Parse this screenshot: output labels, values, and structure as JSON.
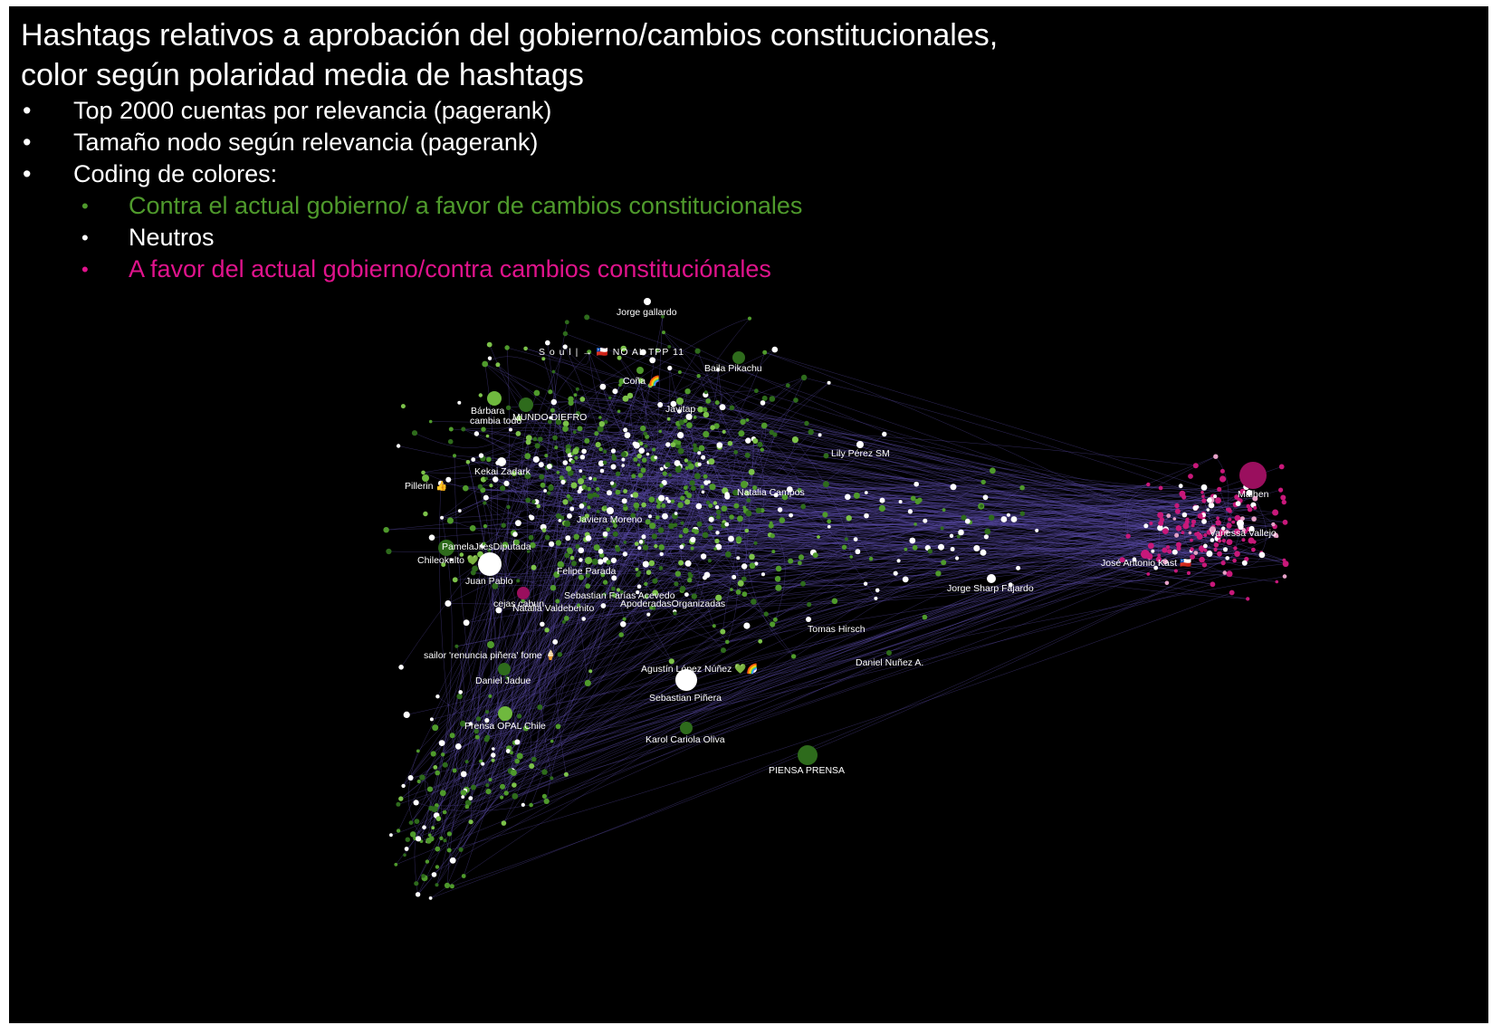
{
  "title": {
    "line1": "Hashtags relativos a aprobación del gobierno/cambios constitucionales,",
    "line2": "color según polaridad media de hashtags"
  },
  "bullets": [
    "Top 2000 cuentas por relevancia (pagerank)",
    "Tamaño nodo según relevancia (pagerank)",
    "Coding de colores:"
  ],
  "legend": [
    {
      "label": "Contra el actual gobierno/ a favor de cambios constitucionales",
      "color": "#4f9a2c"
    },
    {
      "label": "Neutros",
      "color": "#ffffff"
    },
    {
      "label": "A favor del actual gobierno/contra cambios constituciónales",
      "color": "#e0138c"
    }
  ],
  "colors": {
    "background": "#000000",
    "edge": "#5a4aa8",
    "green_node": "#4f9a2c",
    "dark_green_node": "#2e6b1c",
    "light_green_node": "#7cc24a",
    "neutral_node": "#ffffff",
    "magenta_node": "#c8187a"
  },
  "node_labels": [
    "Jorge gallardo",
    "S o u l | → 🇨🇱 NO AL TPP 11",
    "Baila Pikachu",
    "Coña 🌈",
    "Bárbara",
    "cambia todo",
    "MUNDO DIEFRO",
    "Javitap",
    "Lily Pérez SM",
    "Kekai Zadark",
    "Pillerin 👍",
    "Natalia Campos",
    "Malhen",
    "Javiera Moreno",
    "Vanessa Vallejo",
    "PamelaJilesDiputada",
    "José Antonio Kast 🇨🇱",
    "Chileokulto 💚",
    "Felipe Parada",
    "Juan Pablo",
    "Jorge Sharp Fajardo",
    "Sebastian Farías Acevedo",
    "cejas cabun",
    "ApoderadasOrganizadas",
    "Natalia Valdebenito",
    "Tomas Hirsch",
    "sailor 'renuncia piñera' fome 🍦",
    "Daniel Nuñez A.",
    "Agustín López Núñez 💚🌈",
    "Daniel Jadue",
    "Sebastian Piñera",
    "Prensa OPAL Chile",
    "Karol Cariola Oliva",
    "PIENSA PRENSA"
  ]
}
